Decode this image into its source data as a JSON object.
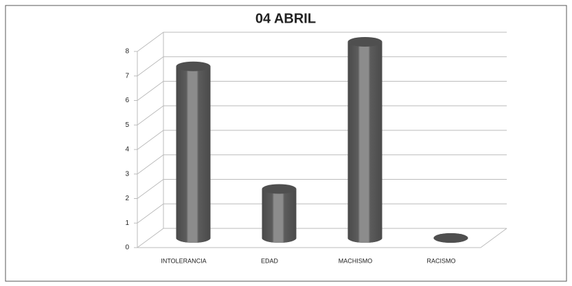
{
  "chart_data": {
    "type": "bar",
    "title": "04 ABRIL",
    "categories": [
      "INTOLERANCIA",
      "EDAD",
      "MACHISMO",
      "RACISMO"
    ],
    "values": [
      7,
      2,
      8,
      0
    ],
    "color": "#5a5a5a",
    "ylim": [
      0,
      8
    ],
    "yticks": [
      0,
      1,
      2,
      3,
      4,
      5,
      6,
      7,
      8
    ],
    "grid": true
  }
}
